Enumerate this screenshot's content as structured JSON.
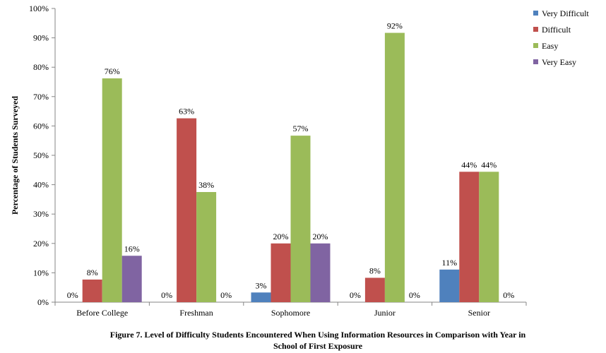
{
  "chart_data": {
    "type": "bar",
    "categories": [
      "Before College",
      "Freshman",
      "Sophomore",
      "Junior",
      "Senior"
    ],
    "series": [
      {
        "name": "Very Difficult",
        "color": "#4F81BD",
        "values": [
          0,
          0,
          3,
          0,
          11
        ]
      },
      {
        "name": "Difficult",
        "color": "#C0504D",
        "values": [
          8,
          63,
          20,
          8,
          44
        ]
      },
      {
        "name": "Easy",
        "color": "#9BBB59",
        "values": [
          76,
          38,
          57,
          92,
          44
        ]
      },
      {
        "name": "Very Easy",
        "color": "#8064A2",
        "values": [
          16,
          0,
          20,
          0,
          0
        ]
      }
    ],
    "bar_heights": [
      [
        0,
        7.7,
        76.2,
        15.8
      ],
      [
        0,
        62.6,
        37.5,
        0
      ],
      [
        3.3,
        20.0,
        56.7,
        20.0
      ],
      [
        0,
        8.3,
        91.7,
        0
      ],
      [
        11.1,
        44.4,
        44.4,
        0
      ]
    ],
    "data_labels": [
      [
        "0%",
        "8%",
        "76%",
        "16%"
      ],
      [
        "0%",
        "63%",
        "38%",
        "0%"
      ],
      [
        "3%",
        "20%",
        "57%",
        "20%"
      ],
      [
        "0%",
        "8%",
        "92%",
        "0%"
      ],
      [
        "11%",
        "44%",
        "44%",
        "0%"
      ]
    ],
    "yticks": [
      "0%",
      "10%",
      "20%",
      "30%",
      "40%",
      "50%",
      "60%",
      "70%",
      "80%",
      "90%",
      "100%"
    ],
    "ylim": [
      0,
      100
    ],
    "ylabel": "Percentage of Students Surveyed",
    "xlabel": "",
    "legend_placement": "right",
    "grid": false,
    "caption_line1": "Figure 7. Level of Difficulty Students  Encountered When Using Information Resources in Comparison with Year in",
    "caption_line2": "School of First Exposure"
  }
}
